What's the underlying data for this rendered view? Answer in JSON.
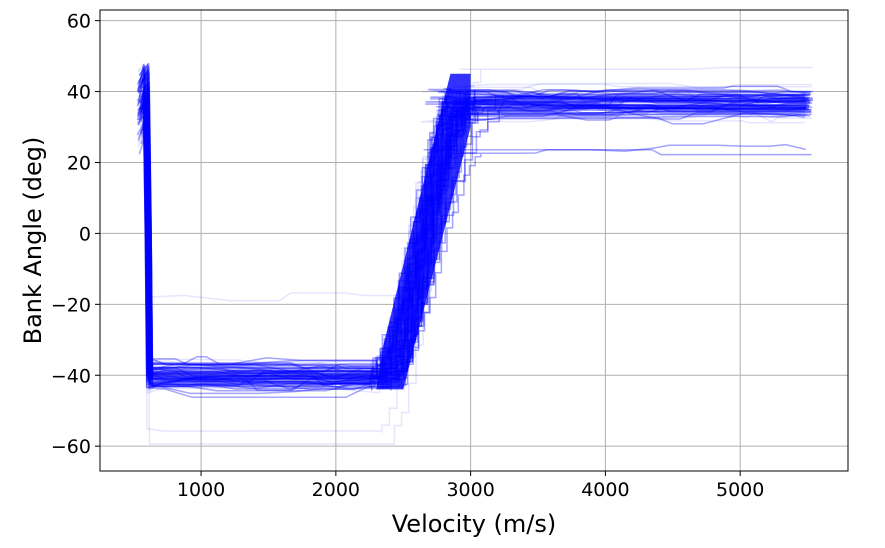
{
  "chart_data": {
    "type": "line",
    "title": "",
    "xlabel": "Velocity (m/s)",
    "ylabel": "Bank Angle (deg)",
    "xlim": [
      250,
      5800
    ],
    "ylim": [
      -67,
      63
    ],
    "xticks": [
      1000,
      2000,
      3000,
      4000,
      5000
    ],
    "yticks": [
      -60,
      -40,
      -20,
      0,
      20,
      40,
      60
    ],
    "xtick_labels": [
      "1000",
      "2000",
      "3000",
      "4000",
      "5000"
    ],
    "ytick_labels": [
      "−60",
      "−40",
      "−20",
      "0",
      "20",
      "40",
      "60"
    ],
    "grid": true,
    "legend": "none",
    "series_color": "#0000ff",
    "series_opacity": 0.1,
    "n_trajectories": "many (Monte Carlo dispersion)",
    "envelope": {
      "initial_reversal": {
        "velocity_range": [
          520,
          640
        ],
        "bank_range": [
          -52,
          52
        ]
      },
      "low_speed_plateau": {
        "velocity_range": [
          560,
          2300
        ],
        "bank_center": -40,
        "bank_spread": [
          -60,
          -14
        ]
      },
      "transition": {
        "velocity_range": [
          2200,
          3200
        ],
        "bank_from": -40,
        "bank_to": 40
      },
      "high_speed_plateau": {
        "velocity_range": [
          2900,
          5520
        ],
        "bank_center": 37,
        "bank_spread": [
          20,
          57
        ]
      }
    },
    "colors": {
      "trajectory": "#0000ff",
      "grid": "#b0b0b0",
      "axes": "#000000",
      "background": "#ffffff"
    }
  }
}
